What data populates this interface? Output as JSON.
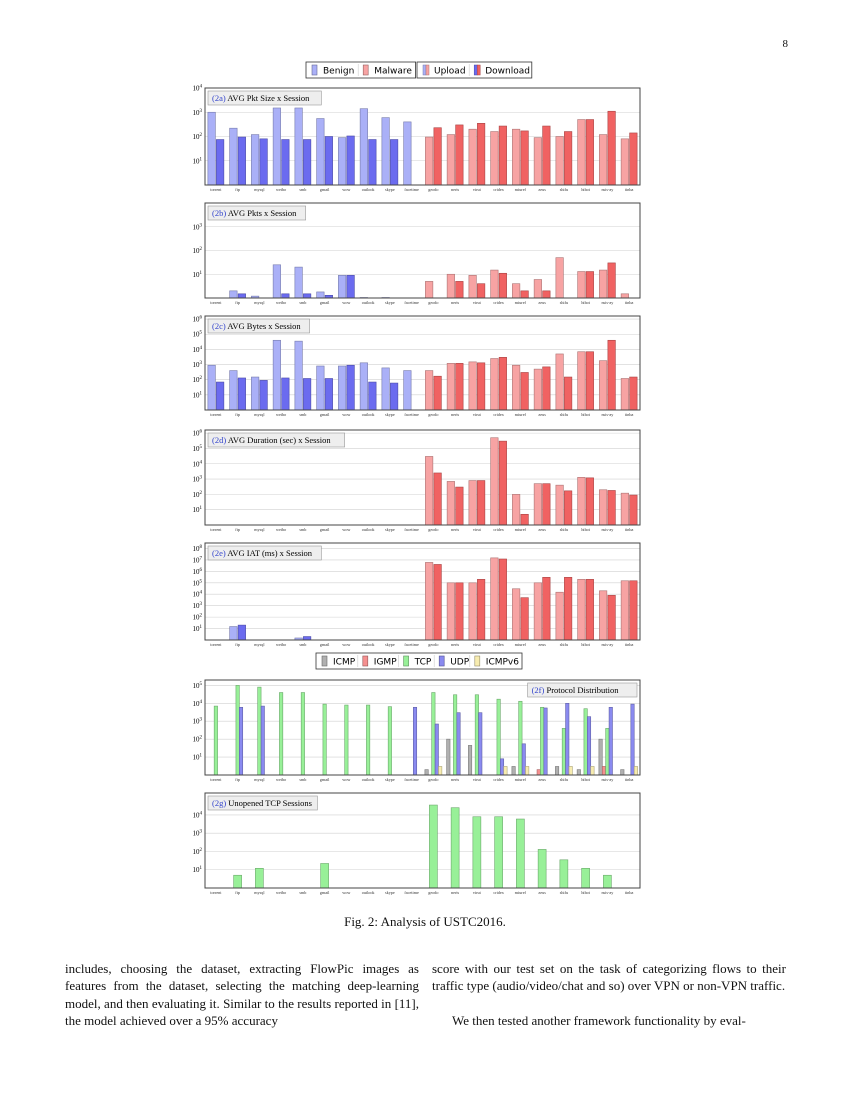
{
  "page_number": "8",
  "caption": "Fig. 2: Analysis of USTC2016.",
  "text": {
    "left": "includes, choosing the dataset, extracting FlowPic images as features from the dataset, selecting the matching deep-learning model, and then evaluating it. Similar to the results reported in [11], the model achieved over a 95% accuracy",
    "right_1": "score with our test set on the task of categorizing flows to their traffic type (audio/video/chat and so) over VPN or non-VPN traffic.",
    "right_2": "We then tested another framework functionality by eval-"
  },
  "legends": {
    "class": [
      "Benign",
      "Malware"
    ],
    "direction": [
      "Upload",
      "Download"
    ],
    "protocol": [
      "ICMP",
      "IGMP",
      "TCP",
      "UDP",
      "ICMPv6"
    ]
  },
  "colors": {
    "benign_upload": "#aab0f7",
    "benign_download": "#6b6bef",
    "malware_upload": "#f7a3a3",
    "malware_download": "#f06262",
    "ICMP": "#b0b0b0",
    "IGMP": "#f59090",
    "TCP": "#98f098",
    "UDP": "#8a8af0",
    "ICMPv6": "#f7ecb0"
  },
  "chart_data": [
    {
      "type": "bar",
      "panel": "2a",
      "title_prefix": "(2a)",
      "title": "AVG Pkt Size x Session",
      "yscale": "log",
      "ylim": [
        1,
        10000
      ],
      "yticks": [
        "10^1",
        "10^2",
        "10^3",
        "10^4"
      ],
      "grid": true,
      "categories": [
        "torrent",
        "ftp",
        "mysql",
        "weibo",
        "smb",
        "gmail",
        "wow",
        "outlook",
        "skype",
        "facetime",
        "geodo",
        "neris",
        "virut",
        "cridex",
        "miuref",
        "zeus",
        "shifu",
        "htbot",
        "nsis-ay",
        "tinba"
      ],
      "benign_count": 10,
      "series": [
        {
          "name": "Upload",
          "values": [
            1000,
            220,
            120,
            1500,
            1500,
            550,
            90,
            1400,
            600,
            400,
            95,
            120,
            200,
            160,
            200,
            90,
            100,
            500,
            120,
            80
          ]
        },
        {
          "name": "Download",
          "values": [
            75,
            95,
            80,
            75,
            75,
            100,
            105,
            75,
            75,
            null,
            230,
            300,
            350,
            270,
            170,
            270,
            160,
            500,
            1100,
            140
          ]
        }
      ]
    },
    {
      "type": "bar",
      "panel": "2b",
      "title_prefix": "(2b)",
      "title": "AVG Pkts x Session",
      "yscale": "log",
      "ylim": [
        1,
        10000
      ],
      "yticks": [
        "10^1",
        "10^2",
        "10^3"
      ],
      "grid": true,
      "categories": [
        "torrent",
        "ftp",
        "mysql",
        "weibo",
        "smb",
        "gmail",
        "wow",
        "outlook",
        "skype",
        "facetime",
        "geodo",
        "neris",
        "virut",
        "cridex",
        "miuref",
        "zeus",
        "shifu",
        "htbot",
        "nsis-ay",
        "tinba"
      ],
      "benign_count": 10,
      "series": [
        {
          "name": "Upload",
          "values": [
            1,
            2,
            1.2,
            25,
            20,
            1.8,
            9,
            1.05,
            1.05,
            1,
            5,
            10,
            9,
            15,
            4,
            6,
            50,
            13,
            15,
            1.5
          ]
        },
        {
          "name": "Download",
          "values": [
            1,
            1.5,
            1,
            1.5,
            1.5,
            1.3,
            9,
            1,
            1,
            null,
            1,
            5,
            4,
            11,
            2,
            2,
            1,
            13,
            30,
            1
          ]
        }
      ]
    },
    {
      "type": "bar",
      "panel": "2c",
      "title_prefix": "(2c)",
      "title": "AVG Bytes x Session",
      "yscale": "log",
      "ylim": [
        1,
        1600000
      ],
      "yticks": [
        "10^1",
        "10^2",
        "10^3",
        "10^4",
        "10^5",
        "10^6"
      ],
      "grid": true,
      "categories": [
        "torrent",
        "ftp",
        "mysql",
        "weibo",
        "smb",
        "gmail",
        "wow",
        "outlook",
        "skype",
        "facetime",
        "geodo",
        "neris",
        "virut",
        "cridex",
        "miuref",
        "zeus",
        "shifu",
        "htbot",
        "nsis-ay",
        "tinba"
      ],
      "benign_count": 10,
      "series": [
        {
          "name": "Upload",
          "values": [
            900,
            400,
            150,
            40000,
            35000,
            800,
            800,
            1300,
            600,
            400,
            400,
            1200,
            1500,
            2500,
            900,
            500,
            5000,
            7000,
            1800,
            120
          ]
        },
        {
          "name": "Download",
          "values": [
            70,
            130,
            90,
            130,
            120,
            120,
            900,
            70,
            60,
            null,
            170,
            1200,
            1300,
            3000,
            300,
            700,
            150,
            7000,
            40000,
            150
          ]
        }
      ]
    },
    {
      "type": "bar",
      "panel": "2d",
      "title_prefix": "(2d)",
      "title": "AVG Duration (sec) x Session",
      "yscale": "log",
      "ylim": [
        1,
        1600000
      ],
      "yticks": [
        "10^1",
        "10^2",
        "10^3",
        "10^4",
        "10^5",
        "10^6"
      ],
      "grid": true,
      "categories": [
        "torrent",
        "ftp",
        "mysql",
        "weibo",
        "smb",
        "gmail",
        "wow",
        "outlook",
        "skype",
        "facetime",
        "geodo",
        "neris",
        "virut",
        "cridex",
        "miuref",
        "zeus",
        "shifu",
        "htbot",
        "nsis-ay",
        "tinba"
      ],
      "benign_count": 10,
      "series": [
        {
          "name": "Upload",
          "values": [
            null,
            null,
            null,
            null,
            null,
            null,
            null,
            null,
            null,
            null,
            30000,
            700,
            800,
            500000,
            100,
            500,
            400,
            1300,
            200,
            120
          ]
        },
        {
          "name": "Download",
          "values": [
            null,
            null,
            null,
            null,
            null,
            null,
            null,
            null,
            null,
            null,
            2500,
            300,
            800,
            300000,
            5,
            500,
            170,
            1200,
            180,
            90
          ]
        }
      ]
    },
    {
      "type": "bar",
      "panel": "2e",
      "title_prefix": "(2e)",
      "title": "AVG IAT (ms) x Session",
      "yscale": "log",
      "ylim": [
        1,
        300000000
      ],
      "yticks": [
        "10^1",
        "10^2",
        "10^3",
        "10^4",
        "10^5",
        "10^6",
        "10^7",
        "10^8"
      ],
      "grid": true,
      "categories": [
        "torrent",
        "ftp",
        "mysql",
        "weibo",
        "smb",
        "gmail",
        "wow",
        "outlook",
        "skype",
        "facetime",
        "geodo",
        "neris",
        "virut",
        "cridex",
        "miuref",
        "zeus",
        "shifu",
        "htbot",
        "nsis-ay",
        "tinba"
      ],
      "benign_count": 10,
      "series": [
        {
          "name": "Upload",
          "values": [
            null,
            15,
            null,
            null,
            1.5,
            null,
            null,
            null,
            null,
            null,
            6000000,
            100000,
            100000,
            15000000,
            30000,
            100000,
            15000,
            200000,
            20000,
            150000
          ]
        },
        {
          "name": "Download",
          "values": [
            null,
            20,
            null,
            null,
            2,
            null,
            null,
            null,
            null,
            null,
            4000000,
            100000,
            200000,
            12000000,
            5000,
            300000,
            300000,
            200000,
            8000,
            150000
          ]
        }
      ]
    },
    {
      "type": "bar",
      "panel": "2f",
      "title_prefix": "(2f)",
      "title": "Protocol Distribution",
      "yscale": "log",
      "ylim": [
        1,
        200000
      ],
      "yticks": [
        "10^1",
        "10^2",
        "10^3",
        "10^4",
        "10^5"
      ],
      "grid": true,
      "categories": [
        "torrent",
        "ftp",
        "mysql",
        "weibo",
        "smb",
        "gmail",
        "wow",
        "outlook",
        "skype",
        "facetime",
        "geodo",
        "neris",
        "virut",
        "cridex",
        "miuref",
        "zeus",
        "shifu",
        "htbot",
        "nsis-ay",
        "tinba"
      ],
      "series": [
        {
          "name": "ICMP",
          "values": [
            null,
            null,
            null,
            null,
            null,
            null,
            null,
            null,
            null,
            null,
            2,
            100,
            45,
            null,
            3,
            null,
            3,
            2,
            100,
            2
          ]
        },
        {
          "name": "IGMP",
          "values": [
            null,
            null,
            null,
            null,
            null,
            null,
            null,
            null,
            null,
            null,
            null,
            null,
            null,
            null,
            null,
            2,
            null,
            null,
            3,
            null
          ]
        },
        {
          "name": "TCP",
          "values": [
            7000,
            100000,
            80000,
            40000,
            40000,
            9000,
            8000,
            8000,
            6500,
            null,
            40000,
            30000,
            30000,
            17000,
            13000,
            6000,
            400,
            5000,
            400,
            null
          ]
        },
        {
          "name": "UDP",
          "values": [
            null,
            6000,
            7000,
            null,
            null,
            null,
            null,
            null,
            null,
            6000,
            700,
            3000,
            3000,
            8,
            55,
            5500,
            10000,
            1800,
            6000,
            9000
          ]
        },
        {
          "name": "ICMPv6",
          "values": [
            null,
            null,
            null,
            null,
            null,
            null,
            null,
            null,
            null,
            null,
            3,
            null,
            null,
            3,
            3,
            null,
            3,
            3,
            null,
            3
          ]
        }
      ]
    },
    {
      "type": "bar",
      "panel": "2g",
      "title_prefix": "(2g)",
      "title": "Unopened TCP Sessions",
      "yscale": "log",
      "ylim": [
        1,
        160000
      ],
      "yticks": [
        "10^1",
        "10^2",
        "10^3",
        "10^4"
      ],
      "grid": true,
      "categories": [
        "torrent",
        "ftp",
        "mysql",
        "weibo",
        "smb",
        "gmail",
        "wow",
        "outlook",
        "skype",
        "facetime",
        "geodo",
        "neris",
        "virut",
        "cridex",
        "miuref",
        "zeus",
        "shifu",
        "htbot",
        "nsis-ay",
        "tinba"
      ],
      "series": [
        {
          "name": "TCP",
          "values": [
            null,
            5,
            12,
            null,
            null,
            22,
            null,
            null,
            null,
            null,
            35000,
            25000,
            8000,
            8000,
            6000,
            130,
            35,
            12,
            5,
            null
          ]
        }
      ]
    }
  ]
}
